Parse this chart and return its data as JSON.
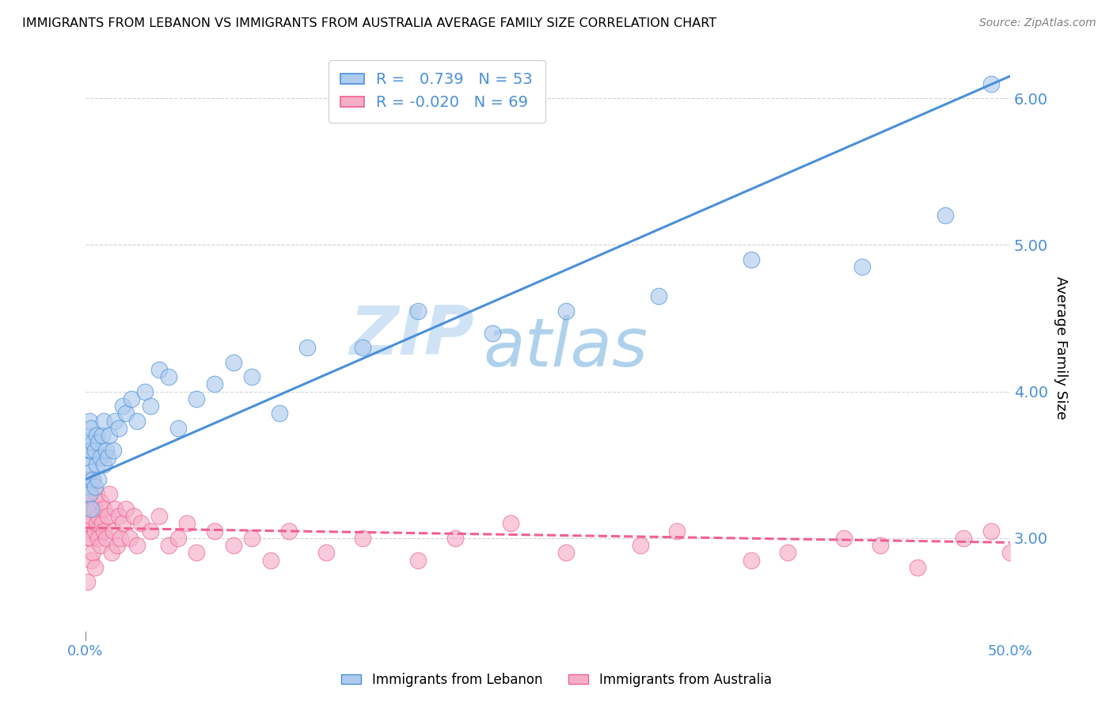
{
  "title": "IMMIGRANTS FROM LEBANON VS IMMIGRANTS FROM AUSTRALIA AVERAGE FAMILY SIZE CORRELATION CHART",
  "source": "Source: ZipAtlas.com",
  "ylabel": "Average Family Size",
  "xmin": 0.0,
  "xmax": 0.5,
  "ymin": 2.3,
  "ymax": 6.3,
  "yticks": [
    3.0,
    4.0,
    5.0,
    6.0
  ],
  "xticks": [
    0.0,
    0.5
  ],
  "xtick_labels": [
    "0.0%",
    "50.0%"
  ],
  "lebanon_R": 0.739,
  "lebanon_N": 53,
  "australia_R": -0.02,
  "australia_N": 69,
  "lebanon_color": "#aecbee",
  "australia_color": "#f5aec8",
  "lebanon_line_color": "#4a90d9",
  "australia_line_color": "#f06090",
  "watermark_zip": "ZIP",
  "watermark_atlas": "atlas",
  "lebanon_line_x0": 0.0,
  "lebanon_line_y0": 3.4,
  "lebanon_line_x1": 0.5,
  "lebanon_line_y1": 6.15,
  "australia_line_x0": 0.0,
  "australia_line_y0": 3.07,
  "australia_line_x1": 0.5,
  "australia_line_y1": 2.97,
  "lebanon_scatter_x": [
    0.001,
    0.001,
    0.001,
    0.002,
    0.002,
    0.002,
    0.002,
    0.003,
    0.003,
    0.003,
    0.003,
    0.004,
    0.004,
    0.005,
    0.005,
    0.006,
    0.006,
    0.007,
    0.007,
    0.008,
    0.009,
    0.01,
    0.01,
    0.011,
    0.012,
    0.013,
    0.015,
    0.016,
    0.018,
    0.02,
    0.022,
    0.025,
    0.028,
    0.032,
    0.035,
    0.04,
    0.045,
    0.05,
    0.06,
    0.07,
    0.08,
    0.09,
    0.105,
    0.12,
    0.15,
    0.18,
    0.22,
    0.26,
    0.31,
    0.36,
    0.42,
    0.465,
    0.49
  ],
  "lebanon_scatter_y": [
    3.35,
    3.55,
    3.7,
    3.3,
    3.5,
    3.6,
    3.8,
    3.2,
    3.45,
    3.6,
    3.75,
    3.4,
    3.65,
    3.35,
    3.6,
    3.5,
    3.7,
    3.4,
    3.65,
    3.55,
    3.7,
    3.5,
    3.8,
    3.6,
    3.55,
    3.7,
    3.6,
    3.8,
    3.75,
    3.9,
    3.85,
    3.95,
    3.8,
    4.0,
    3.9,
    4.15,
    4.1,
    3.75,
    3.95,
    4.05,
    4.2,
    4.1,
    3.85,
    4.3,
    4.3,
    4.55,
    4.4,
    4.55,
    4.65,
    4.9,
    4.85,
    5.2,
    6.1
  ],
  "australia_scatter_x": [
    0.0005,
    0.001,
    0.001,
    0.001,
    0.002,
    0.002,
    0.002,
    0.002,
    0.003,
    0.003,
    0.003,
    0.003,
    0.004,
    0.004,
    0.004,
    0.005,
    0.005,
    0.005,
    0.006,
    0.006,
    0.007,
    0.007,
    0.008,
    0.008,
    0.009,
    0.01,
    0.01,
    0.011,
    0.012,
    0.013,
    0.014,
    0.015,
    0.016,
    0.017,
    0.018,
    0.019,
    0.02,
    0.022,
    0.024,
    0.026,
    0.028,
    0.03,
    0.035,
    0.04,
    0.045,
    0.05,
    0.055,
    0.06,
    0.07,
    0.08,
    0.09,
    0.1,
    0.11,
    0.13,
    0.15,
    0.18,
    0.2,
    0.23,
    0.26,
    0.3,
    0.32,
    0.36,
    0.38,
    0.41,
    0.43,
    0.45,
    0.475,
    0.49,
    0.5
  ],
  "australia_scatter_y": [
    3.05,
    3.2,
    3.4,
    2.7,
    3.1,
    3.25,
    3.0,
    3.35,
    3.15,
    3.3,
    2.85,
    3.0,
    3.2,
    3.4,
    2.9,
    3.05,
    3.2,
    2.8,
    3.1,
    3.3,
    3.0,
    3.15,
    3.25,
    2.95,
    3.1,
    3.05,
    3.2,
    3.0,
    3.15,
    3.3,
    2.9,
    3.05,
    3.2,
    2.95,
    3.15,
    3.0,
    3.1,
    3.2,
    3.0,
    3.15,
    2.95,
    3.1,
    3.05,
    3.15,
    2.95,
    3.0,
    3.1,
    2.9,
    3.05,
    2.95,
    3.0,
    2.85,
    3.05,
    2.9,
    3.0,
    2.85,
    3.0,
    3.1,
    2.9,
    2.95,
    3.05,
    2.85,
    2.9,
    3.0,
    2.95,
    2.8,
    3.0,
    3.05,
    2.9
  ]
}
